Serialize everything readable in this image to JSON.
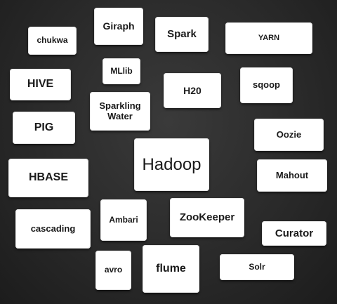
{
  "cards": {
    "chukwa": "chukwa",
    "giraph": "Giraph",
    "spark": "Spark",
    "yarn": "YARN",
    "hive": "HIVE",
    "mllib": "MLlib",
    "h20": "H20",
    "sqoop": "sqoop",
    "sparkling_water": "Sparkling\nWater",
    "pig": "PIG",
    "oozie": "Oozie",
    "hadoop": "Hadoop",
    "hbase": "HBASE",
    "mahout": "Mahout",
    "ambari": "Ambari",
    "zookeeper": "ZooKeeper",
    "cascading": "cascading",
    "curator": "Curator",
    "avro": "avro",
    "flume": "flume",
    "solr": "Solr"
  },
  "colors": {
    "background": "#2b2b2b",
    "card": "#ffffff",
    "text": "#1a1a1a"
  }
}
